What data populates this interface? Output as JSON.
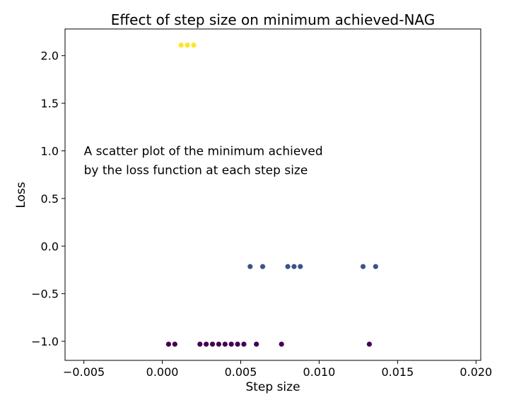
{
  "chart_data": {
    "type": "scatter",
    "title": "Effect of step size on minimum achieved-NAG",
    "xlabel": "Step size",
    "ylabel": "Loss",
    "xlim": [
      -0.0062,
      0.0203
    ],
    "ylim": [
      -1.2,
      2.28
    ],
    "x_ticks": [
      -0.005,
      0.0,
      0.005,
      0.01,
      0.015,
      0.02
    ],
    "x_tick_labels": [
      "−0.005",
      "0.000",
      "0.005",
      "0.010",
      "0.015",
      "0.020"
    ],
    "y_ticks": [
      -1.0,
      -0.5,
      0.0,
      0.5,
      1.0,
      1.5,
      2.0
    ],
    "y_tick_labels": [
      "−1.0",
      "−0.5",
      "0.0",
      "0.5",
      "1.0",
      "1.5",
      "2.0"
    ],
    "grid": false,
    "annotation": [
      "A scatter plot of the minimum achieved",
      "by the loss function at each step size"
    ],
    "annotation_anchor": {
      "x": -0.005,
      "y": 1.0
    },
    "series": [
      {
        "color": "#fde725",
        "points": [
          [
            0.0012,
            2.11
          ],
          [
            0.0016,
            2.11
          ],
          [
            0.002,
            2.11
          ]
        ]
      },
      {
        "color": "#3b528b",
        "points": [
          [
            0.0056,
            -0.215
          ],
          [
            0.0064,
            -0.215
          ],
          [
            0.008,
            -0.215
          ],
          [
            0.0084,
            -0.215
          ],
          [
            0.0088,
            -0.215
          ],
          [
            0.0128,
            -0.215
          ],
          [
            0.0136,
            -0.215
          ]
        ]
      },
      {
        "color": "#440154",
        "points": [
          [
            0.0004,
            -1.03
          ],
          [
            0.0008,
            -1.03
          ],
          [
            0.0024,
            -1.03
          ],
          [
            0.0028,
            -1.03
          ],
          [
            0.0032,
            -1.03
          ],
          [
            0.0036,
            -1.03
          ],
          [
            0.004,
            -1.03
          ],
          [
            0.0044,
            -1.03
          ],
          [
            0.0048,
            -1.03
          ],
          [
            0.0052,
            -1.03
          ],
          [
            0.006,
            -1.03
          ],
          [
            0.0076,
            -1.03
          ],
          [
            0.0132,
            -1.03
          ]
        ]
      }
    ]
  }
}
